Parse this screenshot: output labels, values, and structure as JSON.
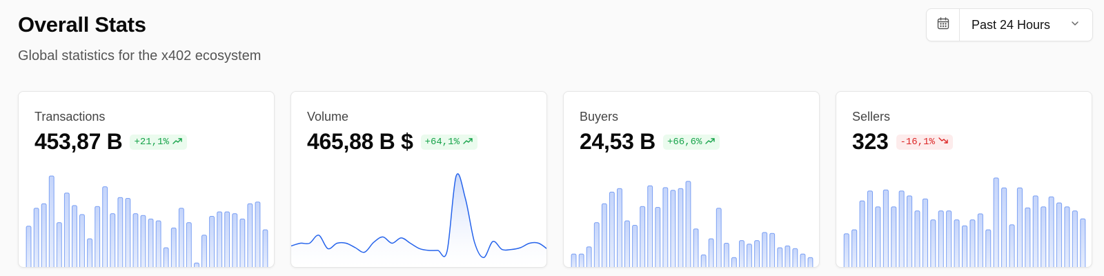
{
  "header": {
    "title": "Overall Stats",
    "subtitle": "Global statistics for the x402 ecosystem"
  },
  "range_picker": {
    "calendar_icon": "calendar-icon",
    "label": "Past 24 Hours",
    "chevron_icon": "chevron-down-icon"
  },
  "colors": {
    "accent": "#2563eb",
    "bar_fill_top": "#c5d5fb",
    "bar_fill_bottom": "#e6edfd",
    "positive": "#16a34a",
    "positive_bg": "#ebfbee",
    "negative": "#dc2626",
    "negative_bg": "#fdecec"
  },
  "cards": [
    {
      "label": "Transactions",
      "value": "453,87 B",
      "change": "+21,1%",
      "trend": "up",
      "trend_icon": "trending-up-icon"
    },
    {
      "label": "Volume",
      "value": "465,88 B $",
      "change": "+64,1%",
      "trend": "up",
      "trend_icon": "trending-up-icon"
    },
    {
      "label": "Buyers",
      "value": "24,53 B",
      "change": "+66,6%",
      "trend": "up",
      "trend_icon": "trending-up-icon"
    },
    {
      "label": "Sellers",
      "value": "323",
      "change": "-16,1%",
      "trend": "down",
      "trend_icon": "trending-down-icon"
    }
  ],
  "chart_data": [
    {
      "type": "bar",
      "series": [
        {
          "values": [
            44,
            64,
            69,
            100,
            48,
            81,
            67,
            57,
            30,
            66,
            88,
            58,
            76,
            75,
            58,
            56,
            52,
            50,
            20,
            42,
            64,
            48,
            3,
            34,
            55,
            60,
            60,
            58,
            52,
            69,
            71,
            40
          ]
        }
      ],
      "ylim": [
        0,
        100
      ]
    },
    {
      "type": "area",
      "series": [
        {
          "values": [
            22,
            25,
            25,
            34,
            19,
            25,
            25,
            20,
            15,
            26,
            32,
            25,
            31,
            25,
            19,
            17,
            17,
            16,
            100,
            75,
            26,
            9,
            27,
            18,
            18,
            20,
            25,
            25,
            18
          ]
        }
      ],
      "ylim": [
        0,
        100
      ]
    },
    {
      "type": "bar",
      "series": [
        {
          "values": [
            13,
            13,
            21,
            48,
            69,
            82,
            86,
            50,
            45,
            66,
            89,
            65,
            87,
            84,
            86,
            94,
            41,
            12,
            30,
            64,
            25,
            9,
            28,
            24,
            28,
            37,
            36,
            20,
            22,
            19,
            13,
            9
          ]
        }
      ],
      "ylim": [
        0,
        100
      ]
    },
    {
      "type": "bar",
      "series": [
        {
          "values": [
            32,
            36,
            65,
            75,
            59,
            76,
            59,
            75,
            70,
            55,
            67,
            46,
            55,
            55,
            46,
            40,
            46,
            52,
            36,
            88,
            78,
            41,
            78,
            58,
            70,
            59,
            69,
            63,
            59,
            55,
            47
          ]
        }
      ],
      "ylim": [
        0,
        90
      ]
    }
  ]
}
